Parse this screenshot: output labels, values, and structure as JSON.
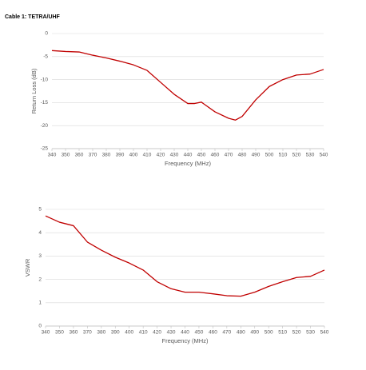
{
  "title": "Cable 1: TETRA/UHF",
  "chart_data": [
    {
      "type": "line",
      "x_label": "Frequency (MHz)",
      "y_label": "Return Loss (dB)",
      "x": [
        340,
        350,
        360,
        370,
        380,
        390,
        400,
        410,
        420,
        430,
        440,
        445,
        450,
        460,
        470,
        475,
        480,
        490,
        500,
        510,
        520,
        530,
        540
      ],
      "series": [
        {
          "name": "Return Loss",
          "color": "#c00000",
          "values": [
            -3.7,
            -3.9,
            -4.0,
            -4.7,
            -5.3,
            -6.0,
            -6.8,
            -8.0,
            -10.6,
            -13.2,
            -15.2,
            -15.2,
            -14.9,
            -17.0,
            -18.4,
            -18.8,
            -18.0,
            -14.4,
            -11.5,
            -10.0,
            -9.0,
            -8.8,
            -7.8
          ]
        }
      ],
      "xlim": [
        340,
        540
      ],
      "xticks": [
        340,
        350,
        360,
        370,
        380,
        390,
        400,
        410,
        420,
        430,
        440,
        450,
        460,
        470,
        480,
        490,
        500,
        510,
        520,
        530,
        540
      ],
      "ylim": [
        -25,
        0
      ],
      "yticks": [
        0,
        -5,
        -10,
        -15,
        -20,
        -25
      ],
      "grid": true
    },
    {
      "type": "line",
      "x_label": "Frequency (MHz)",
      "y_label": "VSWR",
      "x": [
        340,
        350,
        360,
        370,
        380,
        390,
        400,
        410,
        420,
        430,
        440,
        450,
        460,
        470,
        480,
        490,
        500,
        510,
        520,
        530,
        540
      ],
      "series": [
        {
          "name": "VSWR",
          "color": "#c00000",
          "values": [
            4.72,
            4.45,
            4.3,
            3.6,
            3.25,
            2.95,
            2.7,
            2.4,
            1.9,
            1.6,
            1.45,
            1.45,
            1.38,
            1.3,
            1.28,
            1.45,
            1.7,
            1.9,
            2.08,
            2.13,
            2.4
          ]
        }
      ],
      "xlim": [
        340,
        540
      ],
      "xticks": [
        340,
        350,
        360,
        370,
        380,
        390,
        400,
        410,
        420,
        430,
        440,
        450,
        460,
        470,
        480,
        490,
        500,
        510,
        520,
        530,
        540
      ],
      "ylim": [
        0,
        5
      ],
      "yticks": [
        0,
        1,
        2,
        3,
        4,
        5
      ],
      "grid": true
    }
  ]
}
